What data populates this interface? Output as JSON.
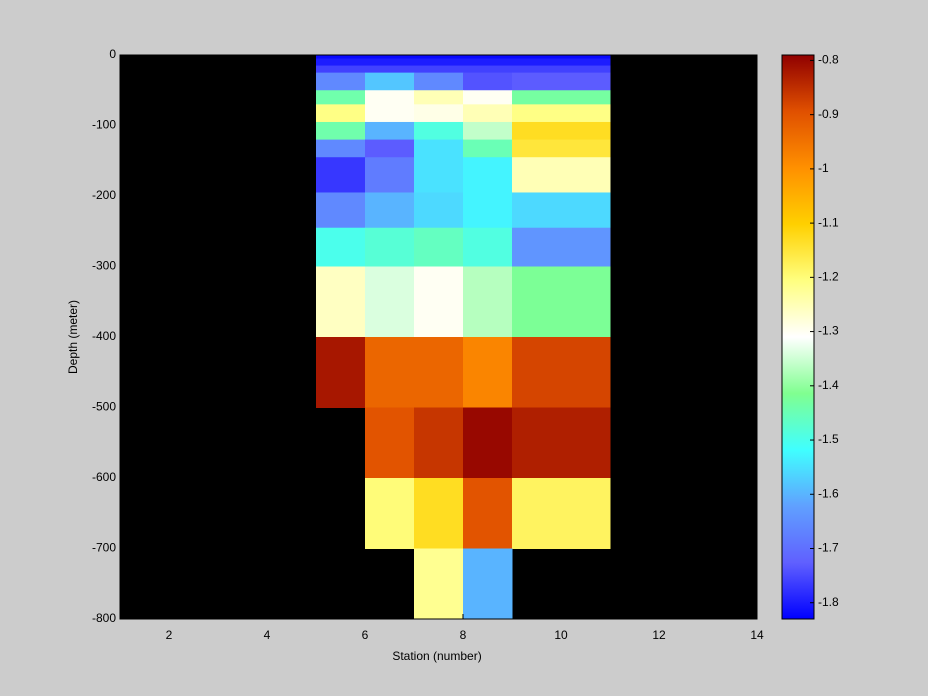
{
  "chart_data": {
    "type": "heatmap",
    "xlabel": "Station (number)",
    "ylabel": "Depth (meter)",
    "xlim": [
      1,
      14
    ],
    "xticks": [
      2,
      4,
      6,
      8,
      10,
      12,
      14
    ],
    "ylim": [
      -800,
      0
    ],
    "yticks": [
      -800,
      -700,
      -600,
      -500,
      -400,
      -300,
      -200,
      -100,
      0
    ],
    "x_edges": [
      5,
      6,
      7,
      8,
      9,
      11
    ],
    "y_edges": [
      0,
      -5,
      -15,
      -25,
      -50,
      -70,
      -95,
      -120,
      -145,
      -195,
      -245,
      -300,
      -400,
      -500,
      -600,
      -700,
      -800
    ],
    "values": [
      [
        -1.82,
        -1.82,
        -1.82,
        -1.82,
        -1.82
      ],
      [
        -1.8,
        -1.8,
        -1.8,
        -1.8,
        -1.8
      ],
      [
        -1.76,
        -1.76,
        -1.76,
        -1.76,
        -1.76
      ],
      [
        -1.66,
        -1.58,
        -1.66,
        -1.74,
        -1.73
      ],
      [
        -1.44,
        -1.3,
        -1.25,
        -1.3,
        -1.43
      ],
      [
        -1.21,
        -1.3,
        -1.29,
        -1.25,
        -1.21
      ],
      [
        -1.44,
        -1.6,
        -1.49,
        -1.36,
        -1.13
      ],
      [
        -1.66,
        -1.73,
        -1.55,
        -1.45,
        -1.15
      ],
      [
        -1.77,
        -1.68,
        -1.55,
        -1.53,
        -1.25
      ],
      [
        -1.66,
        -1.6,
        -1.56,
        -1.53,
        -1.56
      ],
      [
        -1.5,
        -1.48,
        -1.46,
        -1.49,
        -1.64
      ],
      [
        -1.26,
        -1.34,
        -1.3,
        -1.37,
        -1.42
      ],
      [
        -0.82,
        -0.93,
        -0.93,
        -0.98,
        -0.88
      ],
      [
        null,
        -0.9,
        -0.86,
        -0.8,
        -0.83
      ],
      [
        null,
        -1.2,
        -1.13,
        -0.9,
        -1.18
      ],
      [
        null,
        null,
        -1.22,
        -1.6,
        null
      ]
    ],
    "clim": [
      -1.83,
      -0.79
    ],
    "cticks": [
      -1.8,
      -1.7,
      -1.6,
      -1.5,
      -1.4,
      -1.3,
      -1.2,
      -1.1,
      -1,
      -0.9,
      -0.8
    ],
    "colormap": [
      "#0000ff",
      "#6060ff",
      "#60a0ff",
      "#40ffff",
      "#80ff90",
      "#ffffff",
      "#ffff80",
      "#ffd000",
      "#ff9000",
      "#e05000",
      "#900000"
    ],
    "background": "#000000"
  }
}
